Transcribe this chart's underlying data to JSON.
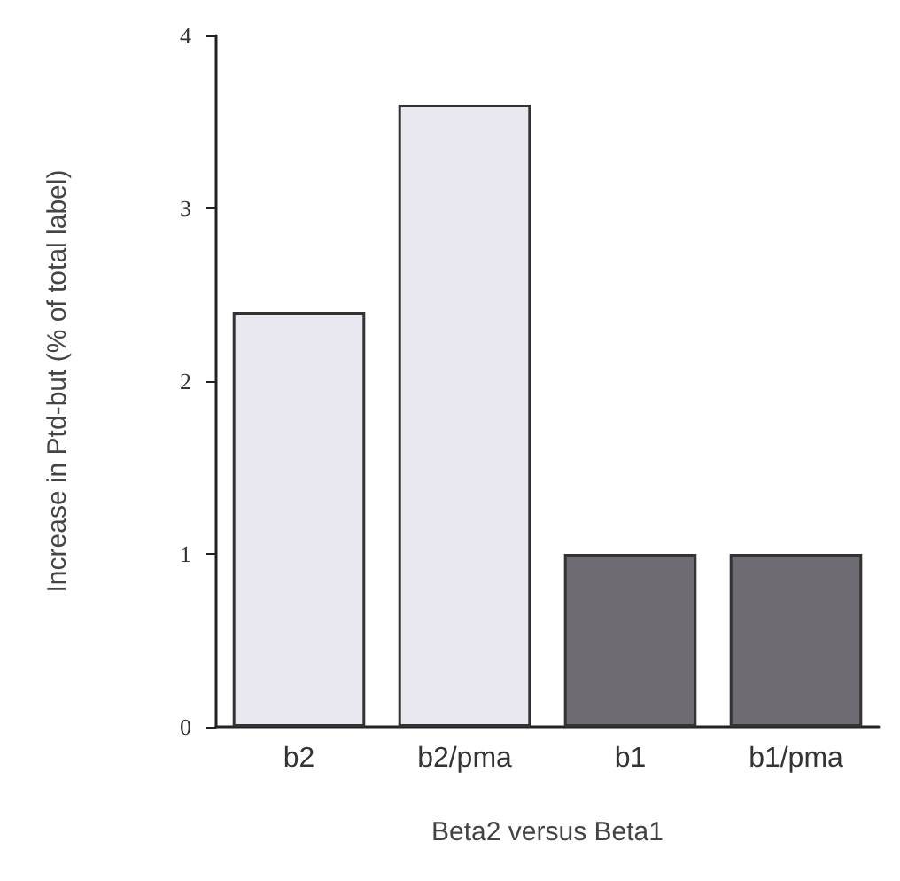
{
  "chart_data": {
    "type": "bar",
    "xlabel": "Beta2 versus Beta1",
    "ylabel": "Increase in Ptd-but (% of total label)",
    "categories": [
      "b2",
      "b2/pma",
      "b1",
      "b1/pma"
    ],
    "values": [
      2.4,
      3.6,
      1.0,
      1.0
    ],
    "colors": [
      "#e9e7f0",
      "#e9e7f0",
      "#6f6b72",
      "#6f6b72"
    ],
    "ylim": [
      0,
      4
    ],
    "yticks": [
      0,
      1,
      2,
      3,
      4
    ],
    "grid": false
  }
}
